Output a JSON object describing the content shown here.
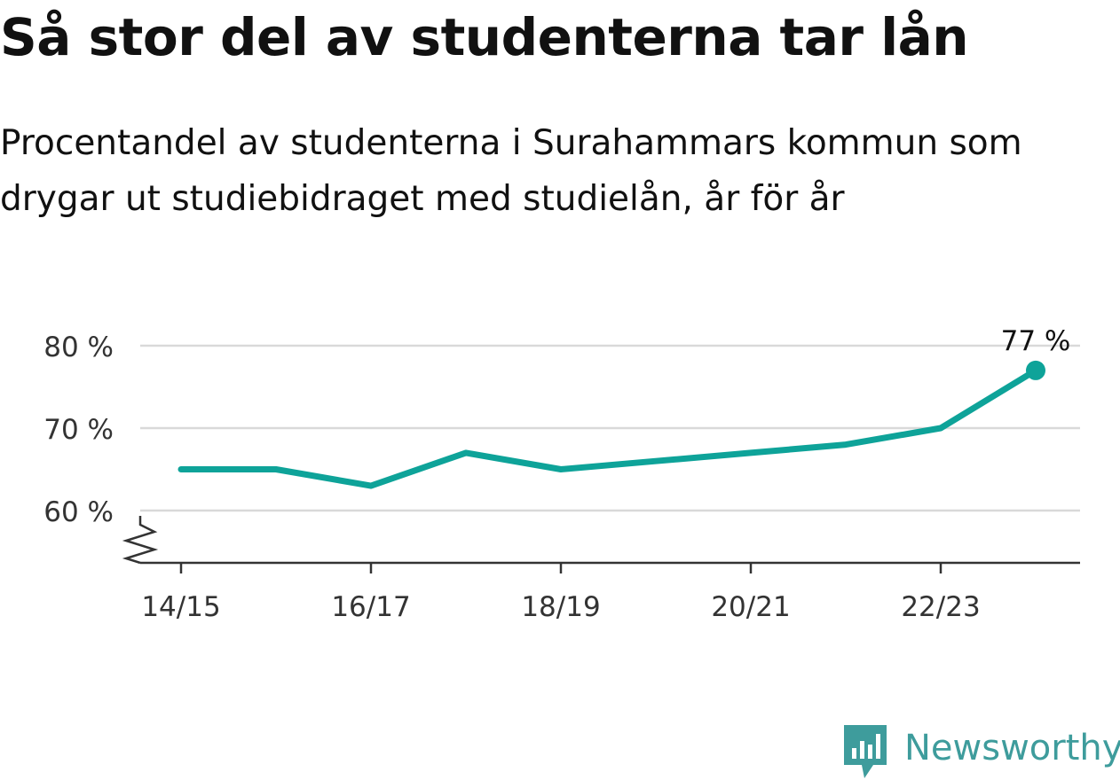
{
  "header": {
    "title": "Så stor del av studenterna tar lån",
    "subtitle": "Procentandel av studenterna i Surahammars kommun som drygar ut studiebidraget med studielån, år för år"
  },
  "chart_data": {
    "type": "line",
    "x": [
      "14/15",
      "15/16",
      "16/17",
      "17/18",
      "18/19",
      "19/20",
      "20/21",
      "21/22",
      "22/23",
      "23/24"
    ],
    "series": [
      {
        "values": [
          65,
          65,
          63,
          67,
          65,
          66,
          67,
          68,
          70,
          77
        ],
        "color": "#0ea399"
      }
    ],
    "x_tick_labels": [
      "14/15",
      "16/17",
      "18/19",
      "20/21",
      "22/23"
    ],
    "y_ticks": [
      60,
      70,
      80
    ],
    "y_tick_labels": [
      "60 %",
      "70 %",
      "80 %"
    ],
    "ylim": [
      55,
      81
    ],
    "axis_break": true,
    "grid": true,
    "annotation": {
      "index": 9,
      "label": "77 %"
    },
    "colors": {
      "line": "#0ea399",
      "grid": "#d9d9d9",
      "axis": "#333333",
      "text": "#333333"
    }
  },
  "brand": {
    "name": "Newsworthy",
    "icon": "bar-chart-logo-icon",
    "color": "#3e9c9c"
  }
}
